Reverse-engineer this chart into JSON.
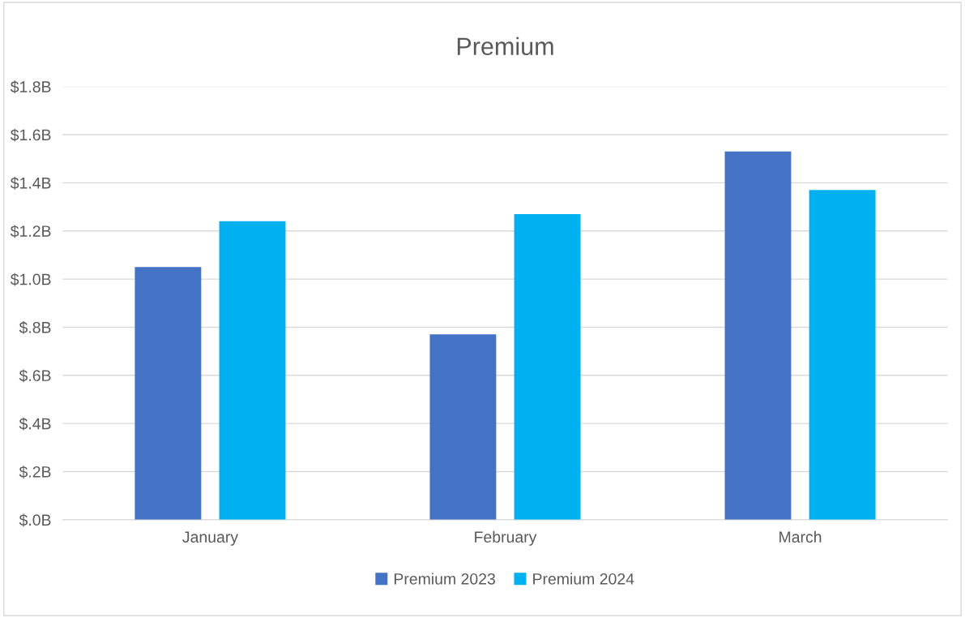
{
  "chart_data": {
    "type": "bar",
    "title": "Premium",
    "categories": [
      "January",
      "February",
      "March"
    ],
    "series": [
      {
        "name": "Premium 2023",
        "color": "#4472c4",
        "values": [
          1.05,
          0.77,
          1.53
        ]
      },
      {
        "name": "Premium 2024",
        "color": "#00b0f0",
        "values": [
          1.24,
          1.27,
          1.37
        ]
      }
    ],
    "ylim": [
      0,
      1.8
    ],
    "yticks": [
      {
        "value": 0,
        "label": "$.0B"
      },
      {
        "value": 0.2,
        "label": "$.2B"
      },
      {
        "value": 0.4,
        "label": "$.4B"
      },
      {
        "value": 0.6,
        "label": "$.6B"
      },
      {
        "value": 0.8,
        "label": "$.8B"
      },
      {
        "value": 1.0,
        "label": "$1.0B"
      },
      {
        "value": 1.2,
        "label": "$1.2B"
      },
      {
        "value": 1.4,
        "label": "$1.4B"
      },
      {
        "value": 1.6,
        "label": "$1.6B"
      },
      {
        "value": 1.8,
        "label": "$1.8B"
      }
    ],
    "grid": "y",
    "legend": "bottom"
  }
}
